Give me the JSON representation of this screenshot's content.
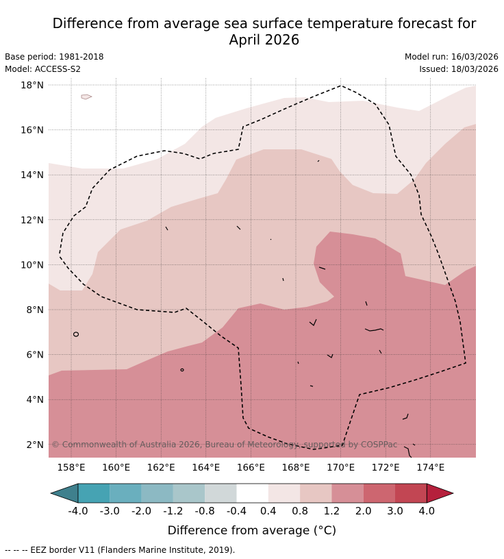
{
  "title_line1": "Difference from average sea surface temperature forecast for",
  "title_line2": "April 2026",
  "base_period": "Base period: 1981-2018",
  "model": "Model: ACCESS-S2",
  "model_run": "Model run: 16/03/2026",
  "issued": "Issued: 18/03/2026",
  "copyright": "© Commonwealth of Australia 2026, Bureau of Meteorology, supported by COSPPac",
  "map": {
    "lon_range": [
      157,
      176
    ],
    "lat_range": [
      1.5,
      18.2
    ],
    "lon_ticks": [
      "158°E",
      "160°E",
      "162°E",
      "164°E",
      "166°E",
      "168°E",
      "170°E",
      "172°E",
      "174°E"
    ],
    "lat_ticks": [
      "18°N",
      "16°N",
      "14°N",
      "12°N",
      "10°N",
      "8°N",
      "6°N",
      "4°N",
      "2°N"
    ]
  },
  "legend": {
    "label": "Difference from average (°C)",
    "ticks": [
      "-4.0",
      "-3.0",
      "-2.0",
      "-1.2",
      "-0.8",
      "-0.4",
      "0.4",
      "0.8",
      "1.2",
      "2.0",
      "3.0",
      "4.0"
    ],
    "colors": [
      "#3f808d",
      "#46a3b3",
      "#6aafbe",
      "#8cb9c3",
      "#a9c6ca",
      "#d1d8d9",
      "#ffffff",
      "#f3e6e5",
      "#e7c7c3",
      "#d68f97",
      "#cd6670",
      "#c24653",
      "#b5203c"
    ]
  },
  "footnote": "--  --  -- EEZ border V11 (Flanders Marine Institute, 2019)."
}
